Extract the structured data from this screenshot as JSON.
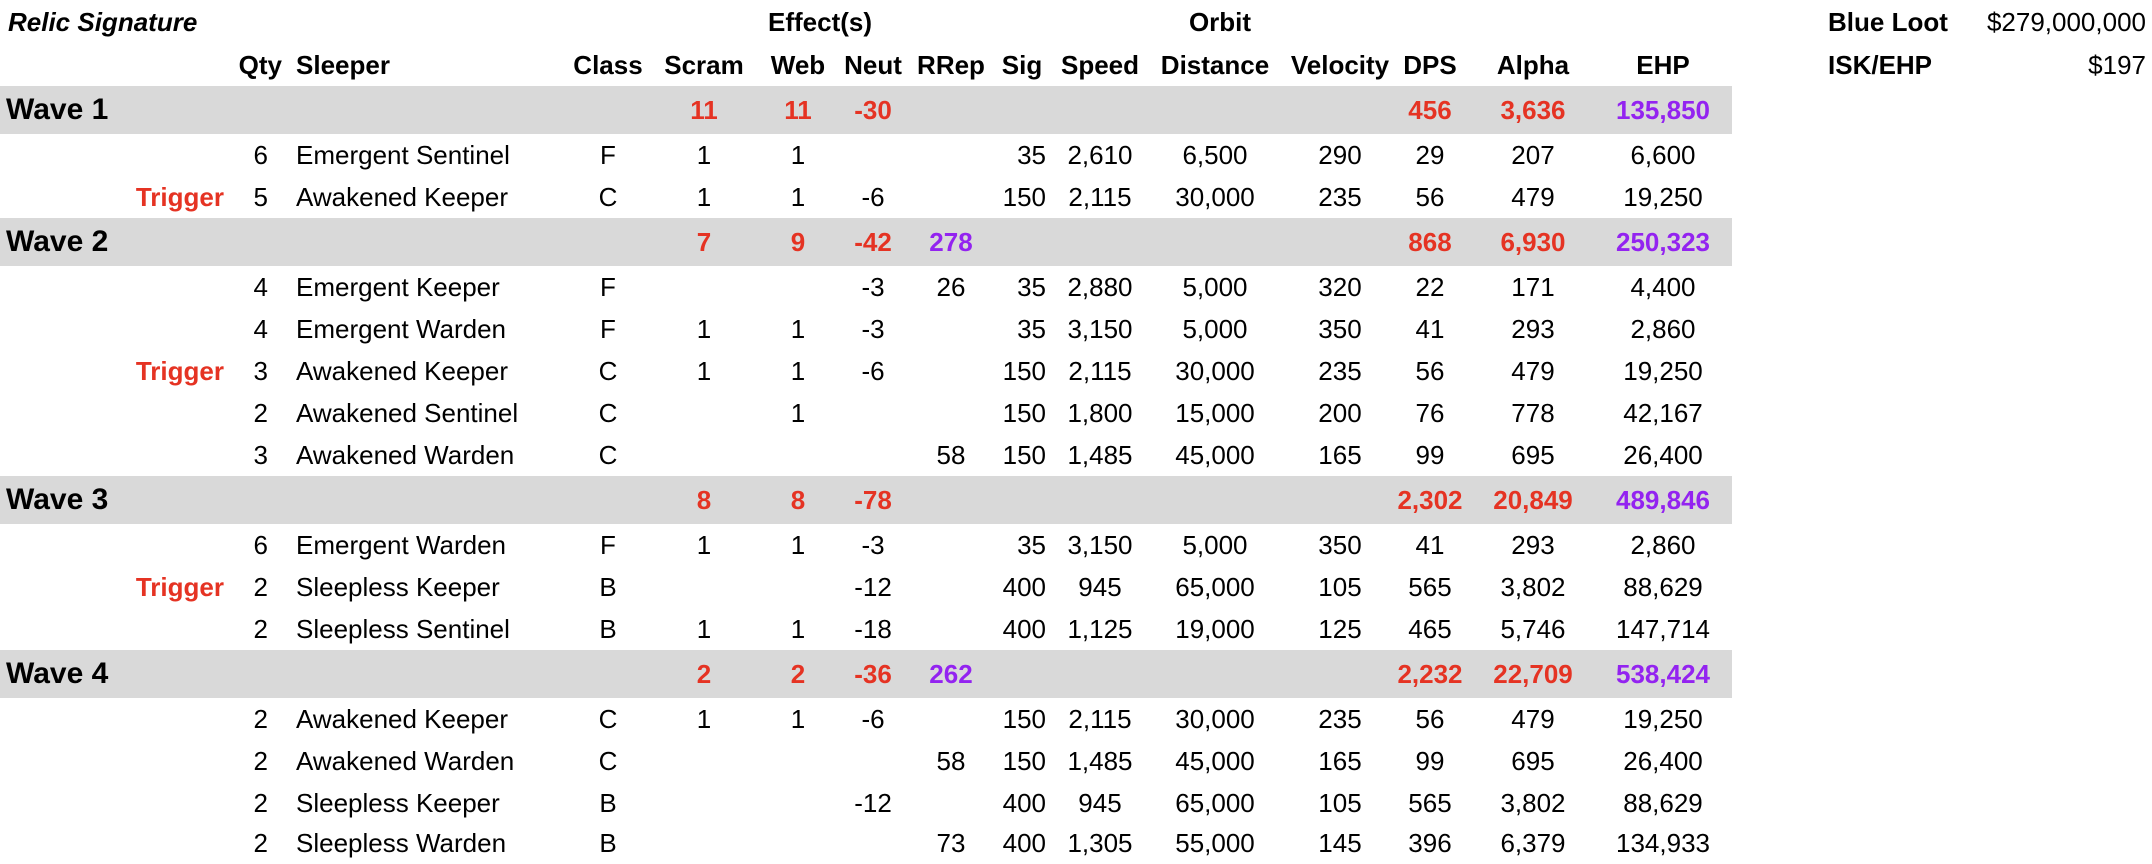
{
  "title": "Relic Signature",
  "group_headers": {
    "effects": "Effect(s)",
    "orbit": "Orbit"
  },
  "columns": {
    "qty": "Qty",
    "sleeper": "Sleeper",
    "class": "Class",
    "scram": "Scram",
    "web": "Web",
    "neut": "Neut",
    "rrep": "RRep",
    "sig": "Sig",
    "speed": "Speed",
    "distance": "Distance",
    "velocity": "Velocity",
    "dps": "DPS",
    "alpha": "Alpha",
    "ehp": "EHP"
  },
  "summary": {
    "blue_loot_label": "Blue Loot",
    "blue_loot_value": "$279,000,000",
    "isk_ehp_label": "ISK/EHP",
    "isk_ehp_value": "$197"
  },
  "colors": {
    "accent_red": "#e53323",
    "accent_purple": "#9323f0",
    "band_gray": "#d9d9d9"
  },
  "waves": [
    {
      "name": "Wave 1",
      "totals": {
        "scram": "11",
        "web": "11",
        "neut": "-30",
        "rrep": "",
        "dps": "456",
        "alpha": "3,636",
        "ehp": "135,850"
      },
      "rows": [
        {
          "trigger": "",
          "qty": "6",
          "sleeper": "Emergent Sentinel",
          "class": "F",
          "scram": "1",
          "web": "1",
          "neut": "",
          "rrep": "",
          "sig": "35",
          "speed": "2,610",
          "distance": "6,500",
          "velocity": "290",
          "dps": "29",
          "alpha": "207",
          "ehp": "6,600"
        },
        {
          "trigger": "Trigger",
          "qty": "5",
          "sleeper": "Awakened Keeper",
          "class": "C",
          "scram": "1",
          "web": "1",
          "neut": "-6",
          "rrep": "",
          "sig": "150",
          "speed": "2,115",
          "distance": "30,000",
          "velocity": "235",
          "dps": "56",
          "alpha": "479",
          "ehp": "19,250"
        }
      ]
    },
    {
      "name": "Wave 2",
      "totals": {
        "scram": "7",
        "web": "9",
        "neut": "-42",
        "rrep": "278",
        "dps": "868",
        "alpha": "6,930",
        "ehp": "250,323"
      },
      "rows": [
        {
          "trigger": "",
          "qty": "4",
          "sleeper": "Emergent Keeper",
          "class": "F",
          "scram": "",
          "web": "",
          "neut": "-3",
          "rrep": "26",
          "sig": "35",
          "speed": "2,880",
          "distance": "5,000",
          "velocity": "320",
          "dps": "22",
          "alpha": "171",
          "ehp": "4,400"
        },
        {
          "trigger": "",
          "qty": "4",
          "sleeper": "Emergent Warden",
          "class": "F",
          "scram": "1",
          "web": "1",
          "neut": "-3",
          "rrep": "",
          "sig": "35",
          "speed": "3,150",
          "distance": "5,000",
          "velocity": "350",
          "dps": "41",
          "alpha": "293",
          "ehp": "2,860"
        },
        {
          "trigger": "Trigger",
          "qty": "3",
          "sleeper": "Awakened Keeper",
          "class": "C",
          "scram": "1",
          "web": "1",
          "neut": "-6",
          "rrep": "",
          "sig": "150",
          "speed": "2,115",
          "distance": "30,000",
          "velocity": "235",
          "dps": "56",
          "alpha": "479",
          "ehp": "19,250"
        },
        {
          "trigger": "",
          "qty": "2",
          "sleeper": "Awakened Sentinel",
          "class": "C",
          "scram": "",
          "web": "1",
          "neut": "",
          "rrep": "",
          "sig": "150",
          "speed": "1,800",
          "distance": "15,000",
          "velocity": "200",
          "dps": "76",
          "alpha": "778",
          "ehp": "42,167"
        },
        {
          "trigger": "",
          "qty": "3",
          "sleeper": "Awakened Warden",
          "class": "C",
          "scram": "",
          "web": "",
          "neut": "",
          "rrep": "58",
          "sig": "150",
          "speed": "1,485",
          "distance": "45,000",
          "velocity": "165",
          "dps": "99",
          "alpha": "695",
          "ehp": "26,400"
        }
      ]
    },
    {
      "name": "Wave 3",
      "totals": {
        "scram": "8",
        "web": "8",
        "neut": "-78",
        "rrep": "",
        "dps": "2,302",
        "alpha": "20,849",
        "ehp": "489,846"
      },
      "rows": [
        {
          "trigger": "",
          "qty": "6",
          "sleeper": "Emergent Warden",
          "class": "F",
          "scram": "1",
          "web": "1",
          "neut": "-3",
          "rrep": "",
          "sig": "35",
          "speed": "3,150",
          "distance": "5,000",
          "velocity": "350",
          "dps": "41",
          "alpha": "293",
          "ehp": "2,860"
        },
        {
          "trigger": "Trigger",
          "qty": "2",
          "sleeper": "Sleepless Keeper",
          "class": "B",
          "scram": "",
          "web": "",
          "neut": "-12",
          "rrep": "",
          "sig": "400",
          "speed": "945",
          "distance": "65,000",
          "velocity": "105",
          "dps": "565",
          "alpha": "3,802",
          "ehp": "88,629"
        },
        {
          "trigger": "",
          "qty": "2",
          "sleeper": "Sleepless Sentinel",
          "class": "B",
          "scram": "1",
          "web": "1",
          "neut": "-18",
          "rrep": "",
          "sig": "400",
          "speed": "1,125",
          "distance": "19,000",
          "velocity": "125",
          "dps": "465",
          "alpha": "5,746",
          "ehp": "147,714"
        }
      ]
    },
    {
      "name": "Wave 4",
      "totals": {
        "scram": "2",
        "web": "2",
        "neut": "-36",
        "rrep": "262",
        "dps": "2,232",
        "alpha": "22,709",
        "ehp": "538,424"
      },
      "rows": [
        {
          "trigger": "",
          "qty": "2",
          "sleeper": "Awakened Keeper",
          "class": "C",
          "scram": "1",
          "web": "1",
          "neut": "-6",
          "rrep": "",
          "sig": "150",
          "speed": "2,115",
          "distance": "30,000",
          "velocity": "235",
          "dps": "56",
          "alpha": "479",
          "ehp": "19,250"
        },
        {
          "trigger": "",
          "qty": "2",
          "sleeper": "Awakened Warden",
          "class": "C",
          "scram": "",
          "web": "",
          "neut": "",
          "rrep": "58",
          "sig": "150",
          "speed": "1,485",
          "distance": "45,000",
          "velocity": "165",
          "dps": "99",
          "alpha": "695",
          "ehp": "26,400"
        },
        {
          "trigger": "",
          "qty": "2",
          "sleeper": "Sleepless Keeper",
          "class": "B",
          "scram": "",
          "web": "",
          "neut": "-12",
          "rrep": "",
          "sig": "400",
          "speed": "945",
          "distance": "65,000",
          "velocity": "105",
          "dps": "565",
          "alpha": "3,802",
          "ehp": "88,629"
        },
        {
          "trigger": "",
          "qty": "2",
          "sleeper": "Sleepless Warden",
          "class": "B",
          "scram": "",
          "web": "",
          "neut": "",
          "rrep": "73",
          "sig": "400",
          "speed": "1,305",
          "distance": "55,000",
          "velocity": "145",
          "dps": "396",
          "alpha": "6,379",
          "ehp": "134,933"
        }
      ]
    }
  ]
}
